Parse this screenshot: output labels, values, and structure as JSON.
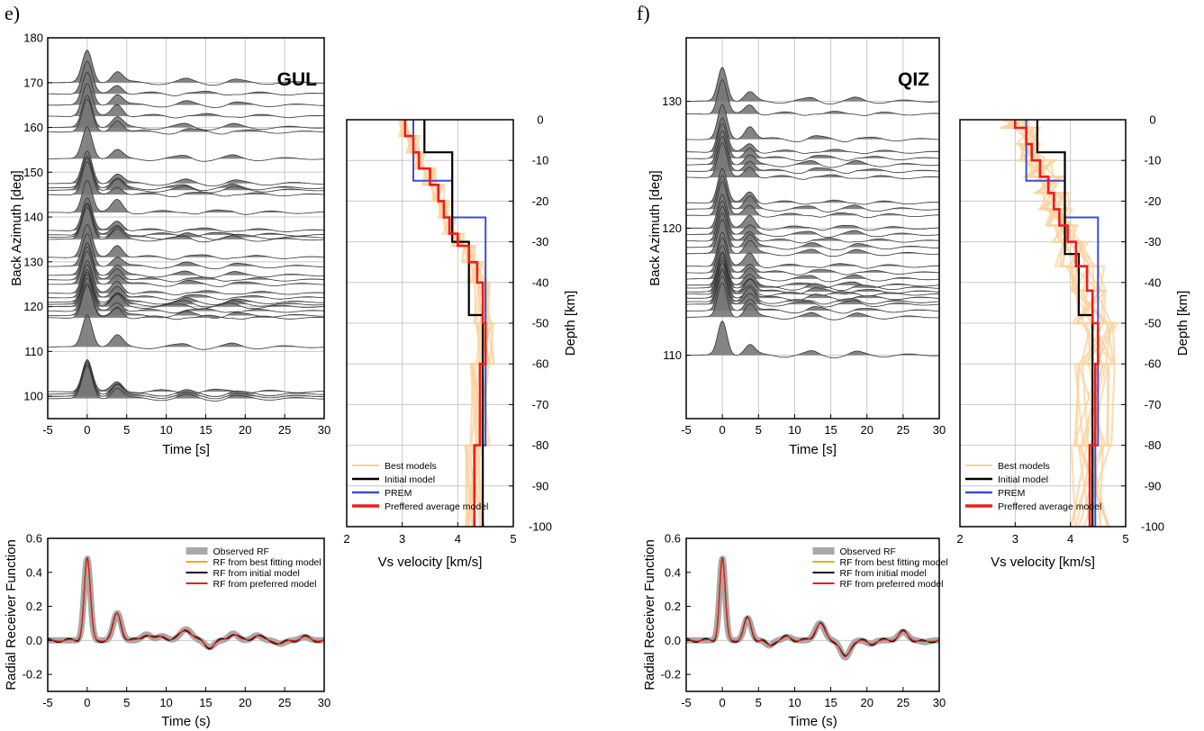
{
  "panels": [
    {
      "letter": "e)",
      "station": "GUL",
      "rf_stack": {
        "xlabel": "Time [s]",
        "ylabel": "Back Azimuth [deg]",
        "xlim": [
          -5,
          30
        ],
        "ylim": [
          95,
          180
        ],
        "xticks": [
          -5,
          0,
          5,
          10,
          15,
          20,
          25,
          30
        ],
        "yticks": [
          100,
          110,
          120,
          130,
          140,
          150,
          160,
          170,
          180
        ],
        "traces_baz": [
          170,
          167.5,
          165,
          162.5,
          160,
          159,
          153,
          147.5,
          146.5,
          146,
          145,
          141,
          137,
          136,
          135.5,
          135,
          131,
          129,
          127,
          126,
          125,
          123,
          122,
          121,
          120.5,
          120,
          119,
          118,
          117.5,
          111,
          101,
          100.5,
          100,
          99.5
        ]
      },
      "rf_fit": {
        "xlabel": "Time (s)",
        "ylabel": "Radial Receiver Function",
        "xlim": [
          -5,
          30
        ],
        "ylim": [
          -0.3,
          0.6
        ],
        "xticks": [
          -5,
          0,
          5,
          10,
          15,
          20,
          25,
          30
        ],
        "yticks": [
          "-0.2",
          "0.0",
          "0.2",
          "0.4",
          "0.6"
        ],
        "ytick_values": [
          -0.2,
          0.0,
          0.2,
          0.4,
          0.6
        ],
        "legend": [
          "Observed RF",
          "RF from best fitting model",
          "RF from initial model",
          "RF from preferred model"
        ],
        "peaks": [
          {
            "t": 0.0,
            "a": 0.48,
            "w": 0.55
          },
          {
            "t": 3.8,
            "a": 0.16,
            "w": 0.7
          },
          {
            "t": 7.5,
            "a": 0.035,
            "w": 0.8
          },
          {
            "t": 9.5,
            "a": 0.025,
            "w": 0.8
          },
          {
            "t": 12.5,
            "a": 0.065,
            "w": 1.0
          },
          {
            "t": 15.5,
            "a": -0.04,
            "w": 0.8
          },
          {
            "t": 18.5,
            "a": 0.04,
            "w": 0.8
          },
          {
            "t": 21.5,
            "a": 0.03,
            "w": 0.8
          },
          {
            "t": 24.5,
            "a": -0.02,
            "w": 0.8
          },
          {
            "t": 27.5,
            "a": 0.02,
            "w": 0.8
          }
        ]
      },
      "velocity": {
        "xlabel": "Vs velocity [km/s]",
        "ylabel": "Depth [km]",
        "xlim": [
          2,
          5
        ],
        "ylim": [
          -100,
          0
        ],
        "xticks": [
          2,
          3,
          4,
          5
        ],
        "yticks": [
          0,
          -10,
          -20,
          -30,
          -40,
          -50,
          -60,
          -70,
          -80,
          -90,
          -100
        ],
        "legend": [
          "Best models",
          "Initial model",
          "PREM",
          "Preffered average model"
        ],
        "initial_model": [
          [
            3.4,
            0
          ],
          [
            3.4,
            -8
          ],
          [
            3.9,
            -8
          ],
          [
            3.9,
            -30
          ],
          [
            4.2,
            -30
          ],
          [
            4.2,
            -48
          ],
          [
            4.45,
            -48
          ],
          [
            4.45,
            -100
          ]
        ],
        "prem": [
          [
            3.2,
            0
          ],
          [
            3.2,
            -15
          ],
          [
            3.9,
            -15
          ],
          [
            3.9,
            -24
          ],
          [
            4.5,
            -24
          ],
          [
            4.5,
            -80
          ],
          [
            4.45,
            -80
          ],
          [
            4.45,
            -100
          ]
        ],
        "preferred_model": [
          [
            3.05,
            0
          ],
          [
            3.05,
            -4
          ],
          [
            3.2,
            -4
          ],
          [
            3.2,
            -8
          ],
          [
            3.3,
            -8
          ],
          [
            3.3,
            -12
          ],
          [
            3.5,
            -12
          ],
          [
            3.5,
            -16
          ],
          [
            3.65,
            -16
          ],
          [
            3.65,
            -20
          ],
          [
            3.75,
            -20
          ],
          [
            3.75,
            -24
          ],
          [
            3.85,
            -24
          ],
          [
            3.85,
            -28
          ],
          [
            4.0,
            -28
          ],
          [
            4.0,
            -31
          ],
          [
            4.2,
            -31
          ],
          [
            4.2,
            -35
          ],
          [
            4.35,
            -35
          ],
          [
            4.35,
            -40
          ],
          [
            4.45,
            -40
          ],
          [
            4.45,
            -50
          ],
          [
            4.5,
            -50
          ],
          [
            4.5,
            -60
          ],
          [
            4.4,
            -60
          ],
          [
            4.4,
            -80
          ],
          [
            4.3,
            -80
          ],
          [
            4.3,
            -100
          ]
        ]
      }
    },
    {
      "letter": "f)",
      "station": "QIZ",
      "rf_stack": {
        "xlabel": "Time [s]",
        "ylabel": "Back Azimuth [deg]",
        "xlim": [
          -5,
          30
        ],
        "ylim": [
          105,
          135
        ],
        "xticks": [
          -5,
          0,
          5,
          10,
          15,
          20,
          25,
          30
        ],
        "yticks": [
          110,
          120,
          130
        ],
        "traces_baz": [
          130,
          129,
          127,
          126,
          125.5,
          125,
          124.5,
          124,
          122,
          121.5,
          121,
          120,
          119.5,
          119,
          118.5,
          118,
          117,
          116.5,
          116,
          115.5,
          115.3,
          115,
          114.8,
          114.5,
          114.2,
          114,
          113.5,
          113,
          110
        ]
      },
      "rf_fit": {
        "xlabel": "Time (s)",
        "ylabel": "Radial Receiver Function",
        "xlim": [
          -5,
          30
        ],
        "ylim": [
          -0.3,
          0.6
        ],
        "xticks": [
          -5,
          0,
          5,
          10,
          15,
          20,
          25,
          30
        ],
        "yticks": [
          "-0.2",
          "0.0",
          "0.2",
          "0.4",
          "0.6"
        ],
        "ytick_values": [
          -0.2,
          0.0,
          0.2,
          0.4,
          0.6
        ],
        "legend": [
          "Observed RF",
          "RF from best fitting model",
          "RF from initial model",
          "RF from preferred model"
        ],
        "peaks": [
          {
            "t": 0.0,
            "a": 0.48,
            "w": 0.55
          },
          {
            "t": 3.5,
            "a": 0.13,
            "w": 0.7
          },
          {
            "t": 6.5,
            "a": -0.03,
            "w": 0.7
          },
          {
            "t": 9.0,
            "a": 0.02,
            "w": 0.8
          },
          {
            "t": 13.5,
            "a": 0.1,
            "w": 0.9
          },
          {
            "t": 17.0,
            "a": -0.1,
            "w": 0.9
          },
          {
            "t": 20.5,
            "a": -0.02,
            "w": 0.8
          },
          {
            "t": 25.0,
            "a": 0.05,
            "w": 0.9
          },
          {
            "t": 28.0,
            "a": -0.01,
            "w": 0.8
          }
        ]
      },
      "velocity": {
        "xlabel": "Vs velocity [km/s]",
        "ylabel": "Depth [km]",
        "xlim": [
          2,
          5
        ],
        "ylim": [
          -100,
          0
        ],
        "xticks": [
          2,
          3,
          4,
          5
        ],
        "yticks": [
          0,
          -10,
          -20,
          -30,
          -40,
          -50,
          -60,
          -70,
          -80,
          -90,
          -100
        ],
        "legend": [
          "Best models",
          "Initial model",
          "PREM",
          "Preffered average model"
        ],
        "initial_model": [
          [
            3.4,
            0
          ],
          [
            3.4,
            -8
          ],
          [
            3.9,
            -8
          ],
          [
            3.9,
            -33
          ],
          [
            4.15,
            -33
          ],
          [
            4.15,
            -48
          ],
          [
            4.4,
            -48
          ],
          [
            4.4,
            -100
          ]
        ],
        "prem": [
          [
            3.2,
            0
          ],
          [
            3.2,
            -15
          ],
          [
            3.9,
            -15
          ],
          [
            3.9,
            -24
          ],
          [
            4.5,
            -24
          ],
          [
            4.5,
            -80
          ],
          [
            4.45,
            -80
          ],
          [
            4.45,
            -100
          ]
        ],
        "preferred_model": [
          [
            3.0,
            0
          ],
          [
            3.0,
            -2
          ],
          [
            3.2,
            -2
          ],
          [
            3.2,
            -6
          ],
          [
            3.3,
            -6
          ],
          [
            3.3,
            -10
          ],
          [
            3.45,
            -10
          ],
          [
            3.45,
            -14
          ],
          [
            3.6,
            -14
          ],
          [
            3.6,
            -18
          ],
          [
            3.7,
            -18
          ],
          [
            3.7,
            -22
          ],
          [
            3.8,
            -22
          ],
          [
            3.8,
            -26
          ],
          [
            3.95,
            -26
          ],
          [
            3.95,
            -30
          ],
          [
            4.1,
            -30
          ],
          [
            4.1,
            -36
          ],
          [
            4.3,
            -36
          ],
          [
            4.3,
            -42
          ],
          [
            4.4,
            -42
          ],
          [
            4.4,
            -50
          ],
          [
            4.5,
            -50
          ],
          [
            4.5,
            -60
          ],
          [
            4.45,
            -60
          ],
          [
            4.45,
            -80
          ],
          [
            4.35,
            -80
          ],
          [
            4.35,
            -100
          ]
        ]
      }
    }
  ],
  "colors": {
    "observed": "#a9a9a9",
    "best": "#f5a623",
    "initial": "#000000",
    "prem": "#3b4fd0",
    "preferred": "#ee1c1c",
    "best_band": "#fbd3a0",
    "fill": "#777777",
    "grid": "#c8c8c8"
  },
  "chart_data": [
    {
      "type": "line",
      "panel": "e)",
      "station": "GUL",
      "xlabel": "Time [s]",
      "ylabel": "Back Azimuth [deg]",
      "xlim": [
        -5,
        30
      ],
      "ylim": [
        95,
        180
      ],
      "grid": true
    },
    {
      "type": "line",
      "panel": "e)",
      "station": "GUL",
      "xlabel": "Time (s)",
      "ylabel": "Radial Receiver Function",
      "xlim": [
        -5,
        30
      ],
      "ylim": [
        -0.3,
        0.6
      ],
      "series": [
        {
          "name": "Observed RF"
        },
        {
          "name": "RF from best fitting model"
        },
        {
          "name": "RF from initial model"
        },
        {
          "name": "RF from preferred model"
        }
      ],
      "legend_position": "top-right"
    },
    {
      "type": "line",
      "panel": "e)",
      "station": "GUL",
      "xlabel": "Vs velocity [km/s]",
      "ylabel": "Depth [km]",
      "xlim": [
        2,
        5
      ],
      "ylim": [
        -100,
        0
      ],
      "series": [
        {
          "name": "Best models"
        },
        {
          "name": "Initial model"
        },
        {
          "name": "PREM"
        },
        {
          "name": "Preffered average model"
        }
      ],
      "legend_position": "bottom-left",
      "grid": true
    },
    {
      "type": "line",
      "panel": "f)",
      "station": "QIZ",
      "xlabel": "Time [s]",
      "ylabel": "Back Azimuth [deg]",
      "xlim": [
        -5,
        30
      ],
      "ylim": [
        105,
        135
      ],
      "grid": true
    },
    {
      "type": "line",
      "panel": "f)",
      "station": "QIZ",
      "xlabel": "Time (s)",
      "ylabel": "Radial Receiver Function",
      "xlim": [
        -5,
        30
      ],
      "ylim": [
        -0.3,
        0.6
      ],
      "series": [
        {
          "name": "Observed RF"
        },
        {
          "name": "RF from best fitting model"
        },
        {
          "name": "RF from initial model"
        },
        {
          "name": "RF from preferred model"
        }
      ],
      "legend_position": "top-right"
    },
    {
      "type": "line",
      "panel": "f)",
      "station": "QIZ",
      "xlabel": "Vs velocity [km/s]",
      "ylabel": "Depth [km]",
      "xlim": [
        2,
        5
      ],
      "ylim": [
        -100,
        0
      ],
      "series": [
        {
          "name": "Best models"
        },
        {
          "name": "Initial model"
        },
        {
          "name": "PREM"
        },
        {
          "name": "Preffered average model"
        }
      ],
      "legend_position": "bottom-left",
      "grid": true
    }
  ]
}
